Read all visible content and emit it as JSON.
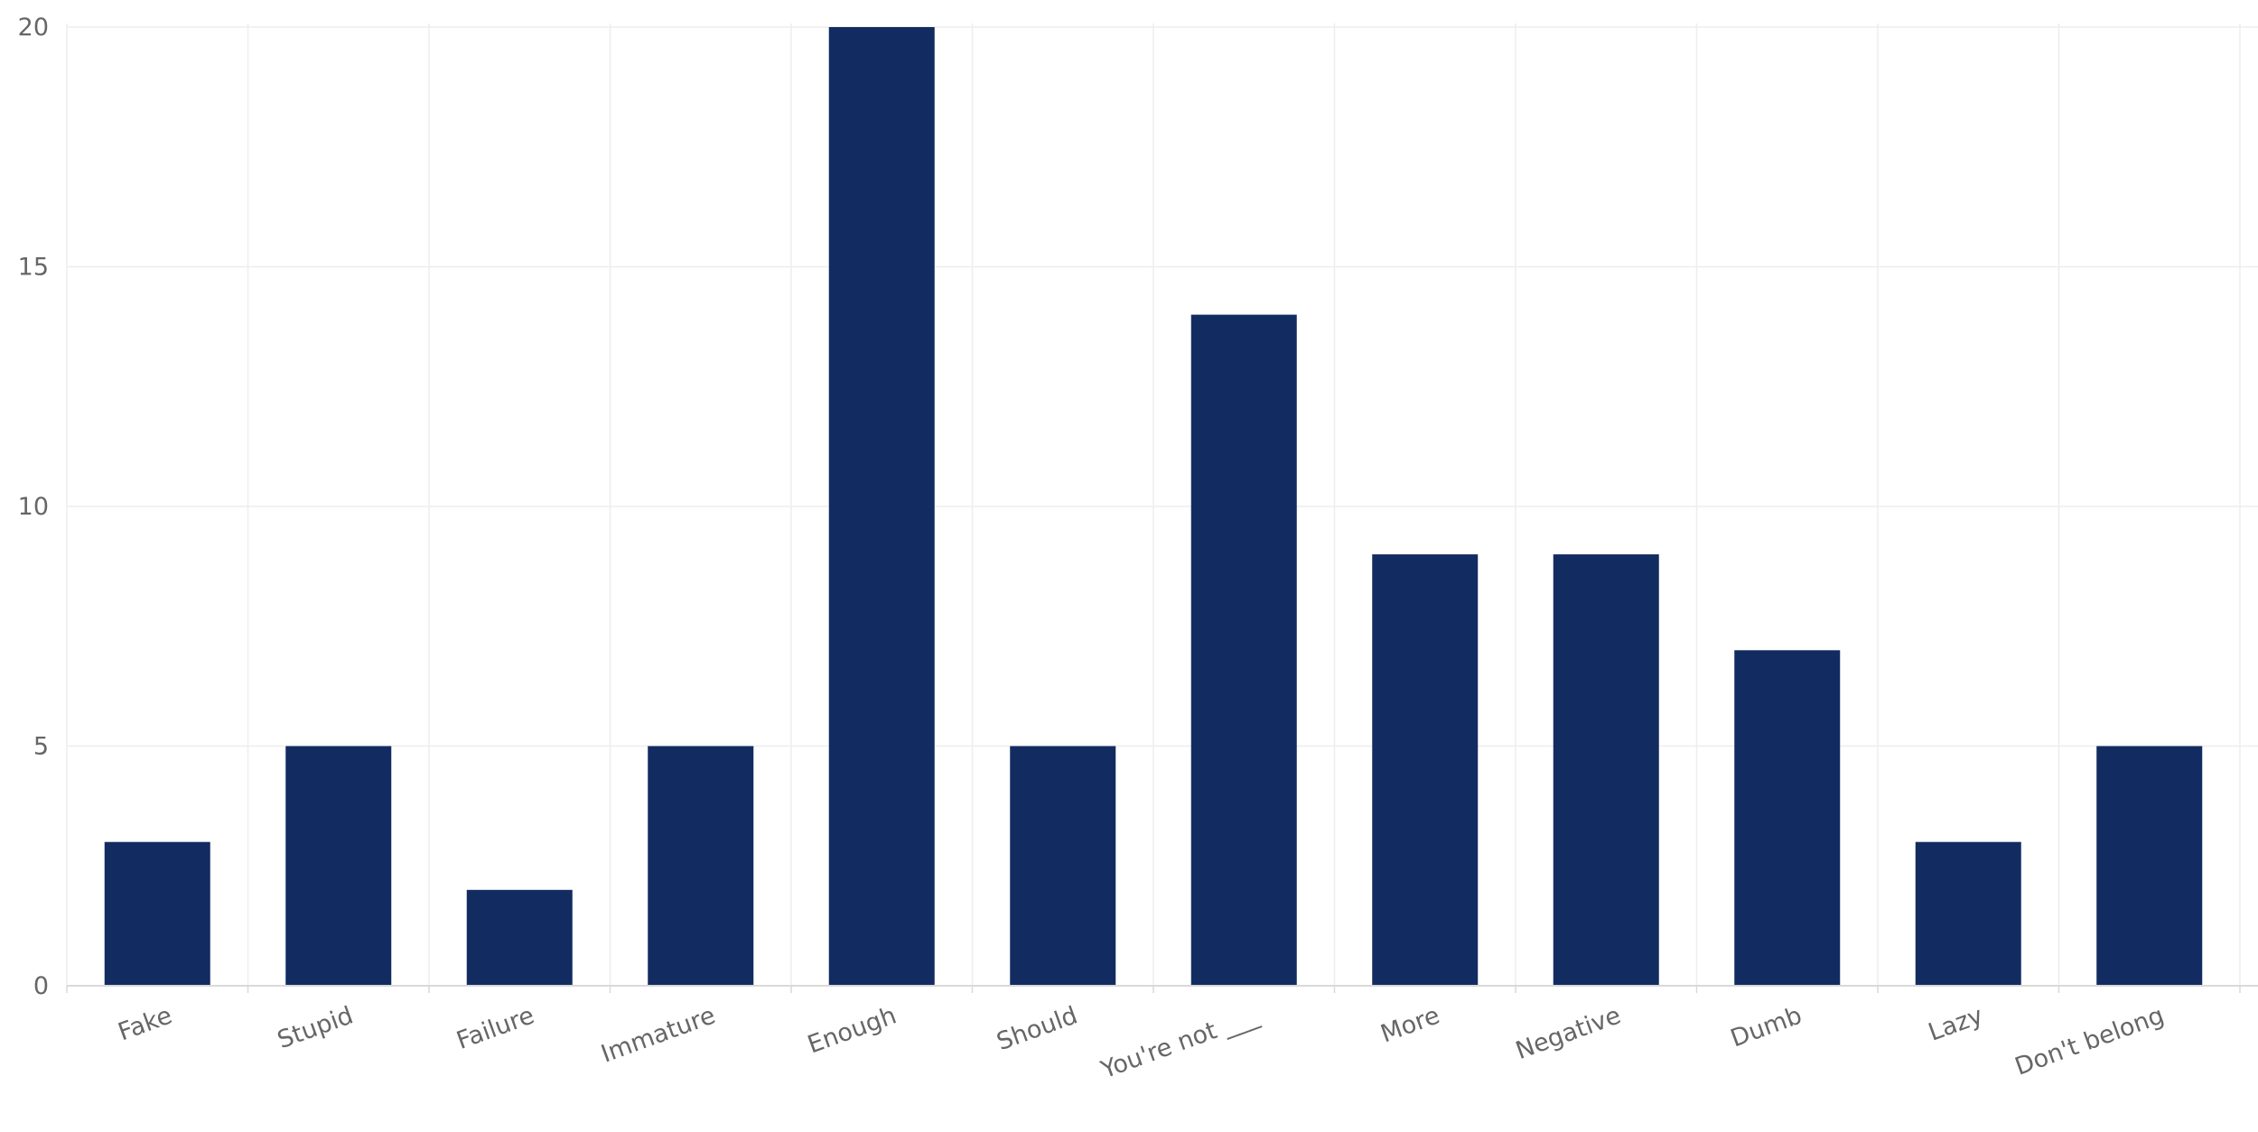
{
  "chart_data": {
    "type": "bar",
    "categories": [
      "Fake",
      "Stupid",
      "Failure",
      "Immature",
      "Enough",
      "Should",
      "You're not ___",
      "More",
      "Negative",
      "Dumb",
      "Lazy",
      "Don't belong"
    ],
    "values": [
      3,
      5,
      2,
      5,
      20,
      5,
      14,
      9,
      9,
      7,
      3,
      5
    ],
    "ylim": [
      0,
      20
    ],
    "yticks": [
      0,
      5,
      10,
      15,
      20
    ],
    "grid": true,
    "colors": {
      "bar": "#122c61",
      "grid": "#eeeeee",
      "axis": "#d9d9d9",
      "text": "#666666"
    }
  }
}
